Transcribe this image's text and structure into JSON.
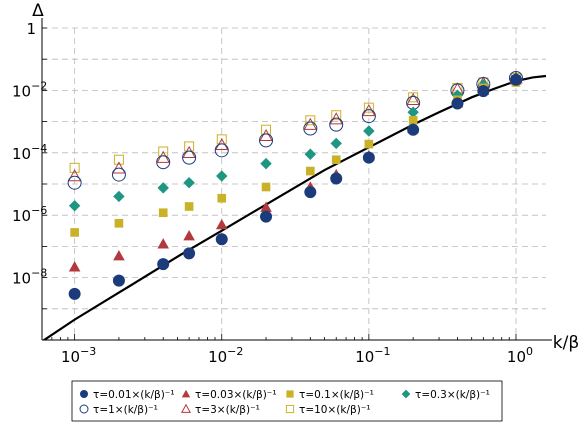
{
  "chart_data": {
    "type": "scatter",
    "xlabel": "k/β",
    "ylabel": "Δ",
    "xscale": "log",
    "yscale": "log",
    "xlim": [
      0.0006,
      1.6
    ],
    "ylim": [
      1e-10,
      1
    ],
    "grid": true,
    "x_tick_labels": [
      {
        "value": 0.001,
        "base": "10",
        "exp": "−3"
      },
      {
        "value": 0.01,
        "base": "10",
        "exp": "−2"
      },
      {
        "value": 0.1,
        "base": "10",
        "exp": "−1"
      },
      {
        "value": 1,
        "base": "10",
        "exp": "0"
      }
    ],
    "y_tick_labels": [
      {
        "value": 1,
        "base": "1",
        "exp": ""
      },
      {
        "value": 0.01,
        "base": "10",
        "exp": "−2"
      },
      {
        "value": 0.0001,
        "base": "10",
        "exp": "−4"
      },
      {
        "value": 1e-06,
        "base": "10",
        "exp": "−6"
      },
      {
        "value": 1e-08,
        "base": "10",
        "exp": "−8"
      }
    ],
    "x": [
      0.001,
      0.002,
      0.004,
      0.006,
      0.01,
      0.02,
      0.04,
      0.06,
      0.1,
      0.2,
      0.4,
      0.6,
      1.0
    ],
    "series": [
      {
        "name": "τ=0.01×(k/β)⁻¹",
        "marker": "circle-filled",
        "color": "#1b3b7a",
        "values": [
          3e-09,
          8e-09,
          2.7e-08,
          6e-08,
          1.7e-07,
          9e-07,
          5.5e-06,
          1.5e-05,
          7e-05,
          0.00055,
          0.0038,
          0.0095,
          0.022
        ]
      },
      {
        "name": "τ=0.03×(k/β)⁻¹",
        "marker": "triangle-filled",
        "color": "#b23a3e",
        "values": [
          2.2e-08,
          5e-08,
          1.2e-07,
          2.2e-07,
          5e-07,
          1.8e-06,
          8e-06,
          2e-05,
          8e-05,
          0.0006,
          0.004,
          0.01,
          0.022
        ]
      },
      {
        "name": "τ=0.1×(k/β)⁻¹",
        "marker": "square-filled",
        "color": "#c9b227",
        "values": [
          2.8e-07,
          5.5e-07,
          1.2e-06,
          1.9e-06,
          3.5e-06,
          8e-06,
          2.6e-05,
          6e-05,
          0.00019,
          0.0011,
          0.005,
          0.012,
          0.018
        ]
      },
      {
        "name": "τ=0.3×(k/β)⁻¹",
        "marker": "diamond-filled",
        "color": "#1f9683",
        "values": [
          2e-06,
          4e-06,
          7.5e-06,
          1.1e-05,
          1.8e-05,
          4.5e-05,
          9e-05,
          0.0002,
          0.0005,
          0.002,
          0.007,
          0.015,
          0.023
        ]
      },
      {
        "name": "τ=1×(k/β)⁻¹",
        "marker": "circle-open",
        "color": "#1b3b7a",
        "values": [
          1.1e-05,
          2e-05,
          5e-05,
          7e-05,
          0.00012,
          0.00025,
          0.0006,
          0.0008,
          0.0015,
          0.004,
          0.01,
          0.016,
          0.025
        ]
      },
      {
        "name": "τ=3×(k/β)⁻¹",
        "marker": "triangle-open",
        "color": "#b23a3e",
        "values": [
          1.8e-05,
          3.2e-05,
          7e-05,
          0.0001,
          0.00018,
          0.00035,
          0.0008,
          0.0012,
          0.0022,
          0.005,
          0.011,
          0.017,
          0.025
        ]
      },
      {
        "name": "τ=10×(k/β)⁻¹",
        "marker": "square-open",
        "color": "#c9b227",
        "values": [
          3.3e-05,
          6e-05,
          0.00011,
          0.00016,
          0.00027,
          0.00055,
          0.0011,
          0.0016,
          0.0028,
          0.006,
          0.012,
          0.018,
          0.025
        ]
      }
    ],
    "curve": {
      "color": "#000000",
      "x": [
        0.0006,
        0.001,
        0.002,
        0.005,
        0.01,
        0.02,
        0.05,
        0.1,
        0.2,
        0.3,
        0.5,
        0.7,
        1.0,
        1.3,
        1.6
      ],
      "y": [
        9e-11,
        4.5e-10,
        3.3e-09,
        4.7e-08,
        3.2e-07,
        2.2e-06,
        2.8e-05,
        0.00015,
        0.0008,
        0.002,
        0.006,
        0.011,
        0.02,
        0.026,
        0.029
      ]
    }
  }
}
